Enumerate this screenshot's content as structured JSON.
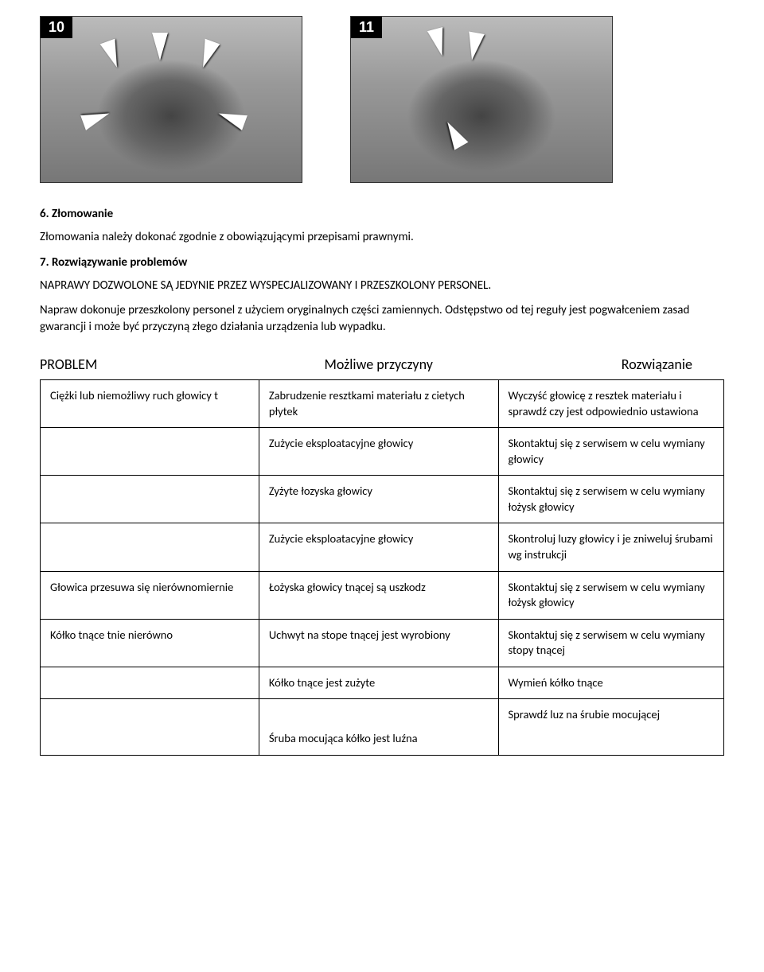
{
  "images": {
    "fig10_label": "10",
    "fig11_label": "11"
  },
  "sections": {
    "s6_title": "6. Złomowanie",
    "s6_text": "Złomowania należy dokonać zgodnie z obowiązującymi przepisami prawnymi.",
    "s7_title": "7. Rozwiązywanie problemów",
    "s7_warning": "NAPRAWY DOZWOLONE SĄ JEDYNIE PRZEZ WYSPECJALIZOWANY I PRZESZKOLONY PERSONEL.",
    "s7_text": "Napraw dokonuje przeszkolony personel z użyciem oryginalnych części zamiennych. Odstępstwo od tej reguły jest pogwałceniem zasad gwarancji i może być przyczyną złego działania urządzenia lub wypadku."
  },
  "table": {
    "header_problem": "PROBLEM",
    "header_cause": "Możliwe przyczyny",
    "header_solution": "Rozwiązanie",
    "rows": [
      {
        "problem": "Ciężki lub niemożliwy ruch głowicy t",
        "cause": "Zabrudzenie resztkami materiału z cietych płytek",
        "solution": "Wyczyść głowicę z resztek materiału i sprawdź czy jest odpowiednio ustawiona"
      },
      {
        "problem": "",
        "cause": "Zużycie eksploatacyjne głowicy",
        "solution": "Skontaktuj się z serwisem w celu wymiany głowicy"
      },
      {
        "problem": "",
        "cause": "Zyżyte łozyska głowicy",
        "solution": "Skontaktuj się z serwisem w celu wymiany łożysk głowicy"
      },
      {
        "problem": "",
        "cause": "Zużycie eksploatacyjne głowicy",
        "solution": "Skontroluj luzy głowicy i je zniweluj śrubami wg instrukcji"
      },
      {
        "problem": "Głowica przesuwa się nierównomiernie",
        "cause": "Łożyska głowicy tnącej są uszkodz",
        "solution": "Skontaktuj się z serwisem w celu wymiany łożysk głowicy"
      },
      {
        "problem": "Kółko tnące tnie nierówno",
        "cause": "Uchwyt na stope tnącej jest wyrobiony",
        "solution": "Skontaktuj się z serwisem w celu wymiany stopy tnącej"
      },
      {
        "problem": "",
        "cause": "Kółko tnące jest zużyte",
        "solution": "Wymień kółko tnące"
      },
      {
        "problem": "",
        "cause": "Śruba mocująca kółko jest luźna",
        "solution": "Sprawdź luz na śrubie mocującej"
      }
    ]
  }
}
